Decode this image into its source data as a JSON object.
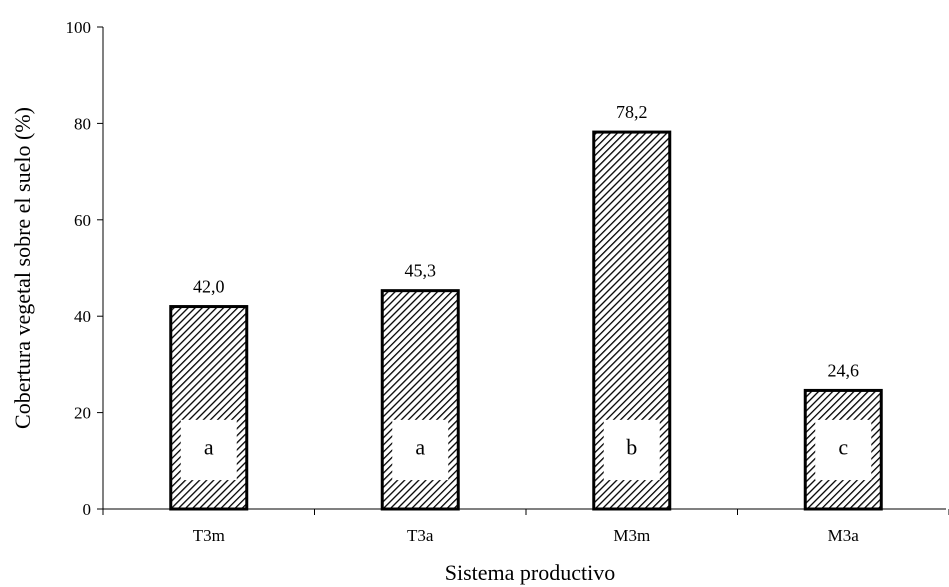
{
  "chart_data": {
    "type": "bar",
    "title": "",
    "xlabel": "Sistema productivo",
    "ylabel": "Cobertura vegetal sobre el suelo (%)",
    "ylim": [
      0,
      100
    ],
    "yticks": [
      0,
      20,
      40,
      60,
      80,
      100
    ],
    "categories": [
      "T3m",
      "T3a",
      "M3m",
      "M3a"
    ],
    "values": [
      42.0,
      45.3,
      78.2,
      24.6
    ],
    "data_labels": [
      "42,0",
      "45,3",
      "78,2",
      "24,6"
    ],
    "group_letters": [
      "a",
      "a",
      "b",
      "c"
    ],
    "grid": false,
    "legend": "none",
    "bar_fill": "diagonal-hatch",
    "colors": {
      "bar_stroke": "#000000",
      "hatch": "#000000",
      "background": "#ffffff"
    }
  }
}
